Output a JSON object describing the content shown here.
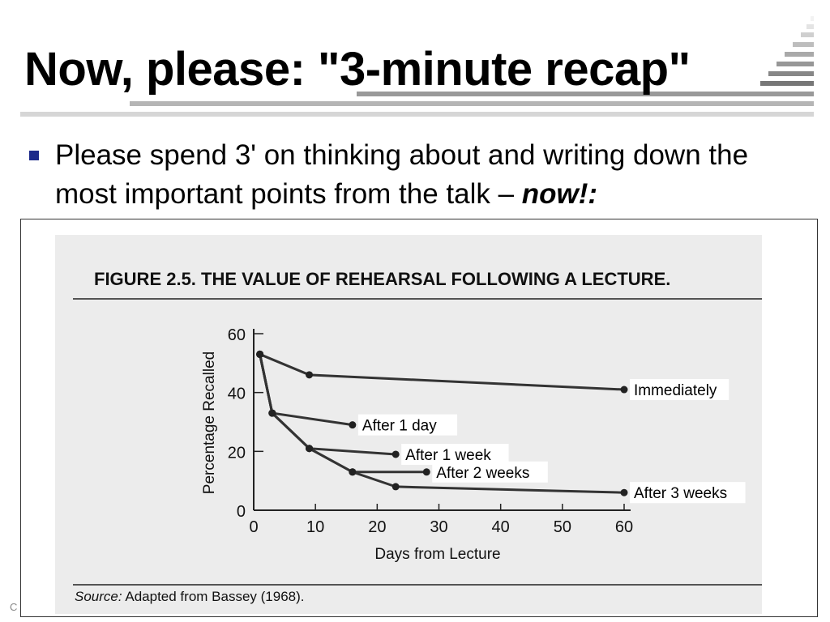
{
  "slide": {
    "title": "Now, please: \"3-minute recap\"",
    "bullet_main": "Please spend 3' on thinking about and writing down the most important points from the talk – ",
    "bullet_emph": "now!:",
    "corner_text": "C"
  },
  "colors": {
    "bullet": "#1d2a8a",
    "curve": "#333333",
    "scan_background": "#ececec"
  },
  "chart_data": {
    "type": "line",
    "title": "FIGURE 2.5.  THE VALUE OF REHEARSAL FOLLOWING A LECTURE.",
    "xlabel": "Days from Lecture",
    "ylabel": "Percentage Recalled",
    "xlim": [
      0,
      60
    ],
    "ylim": [
      0,
      60
    ],
    "xticks": [
      "0",
      "10",
      "20",
      "30",
      "40",
      "50",
      "60"
    ],
    "yticks": [
      "0",
      "20",
      "40",
      "60"
    ],
    "source_label": "Source:",
    "source_text": " Adapted from Bassey (1968).",
    "series": [
      {
        "name": "Immediately",
        "x": [
          1,
          9,
          60
        ],
        "y": [
          53,
          46,
          41
        ]
      },
      {
        "name": "After 1 day",
        "x": [
          1,
          3,
          16
        ],
        "y": [
          53,
          33,
          29
        ]
      },
      {
        "name": "After 1 week",
        "x": [
          1,
          3,
          9,
          23
        ],
        "y": [
          53,
          33,
          21,
          19
        ]
      },
      {
        "name": "After 2 weeks",
        "x": [
          1,
          3,
          9,
          16,
          28
        ],
        "y": [
          53,
          33,
          21,
          13,
          13
        ]
      },
      {
        "name": "After 3 weeks",
        "x": [
          1,
          3,
          9,
          16,
          23,
          60
        ],
        "y": [
          53,
          33,
          21,
          13,
          8,
          6
        ]
      }
    ]
  }
}
